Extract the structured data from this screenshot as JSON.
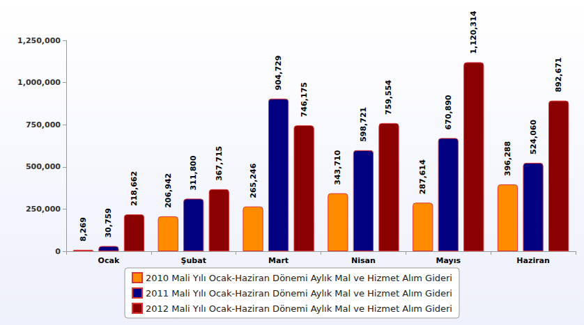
{
  "chart_data": {
    "type": "bar",
    "categories": [
      "Ocak",
      "Şubat",
      "Mart",
      "Nisan",
      "Mayıs",
      "Haziran"
    ],
    "series": [
      {
        "name": "2010 Mali Yılı Ocak-Haziran Dönemi Aylık Mal ve Hizmet Alım Gideri",
        "color": "#ff8c00",
        "values": [
          8269,
          206942,
          265246,
          343710,
          287614,
          396288
        ],
        "value_labels": [
          "8,269",
          "206,942",
          "265,246",
          "343,710",
          "287,614",
          "396,288"
        ]
      },
      {
        "name": "2011 Mali Yılı Ocak-Haziran Dönemi Aylık Mal ve Hizmet Alım Gideri",
        "color": "#000080",
        "values": [
          30759,
          311800,
          904729,
          598721,
          670890,
          524060
        ],
        "value_labels": [
          "30,759",
          "311,800",
          "904,729",
          "598,721",
          "670,890",
          "524,060"
        ]
      },
      {
        "name": "2012 Mali Yılı Ocak-Haziran Dönemi Aylık Mal ve Hizmet Alım Gideri",
        "color": "#8b0000",
        "values": [
          218662,
          367715,
          746175,
          759554,
          1120314,
          892671
        ],
        "value_labels": [
          "218,662",
          "367,715",
          "746,175",
          "759,554",
          "1,120,314",
          "892,671"
        ]
      }
    ],
    "ylim": [
      0,
      1250000
    ],
    "yticks": [
      0,
      {
        "value": 250000,
        "label": "250,000"
      },
      {
        "value": 500000,
        "label": "500,000"
      },
      {
        "value": 750000,
        "label": "750,000"
      },
      {
        "value": 1000000,
        "label": "1,000,000"
      },
      {
        "value": 1250000,
        "label": "1,250,000"
      }
    ],
    "grid": false,
    "legend": "bottom",
    "data_labels": true
  }
}
